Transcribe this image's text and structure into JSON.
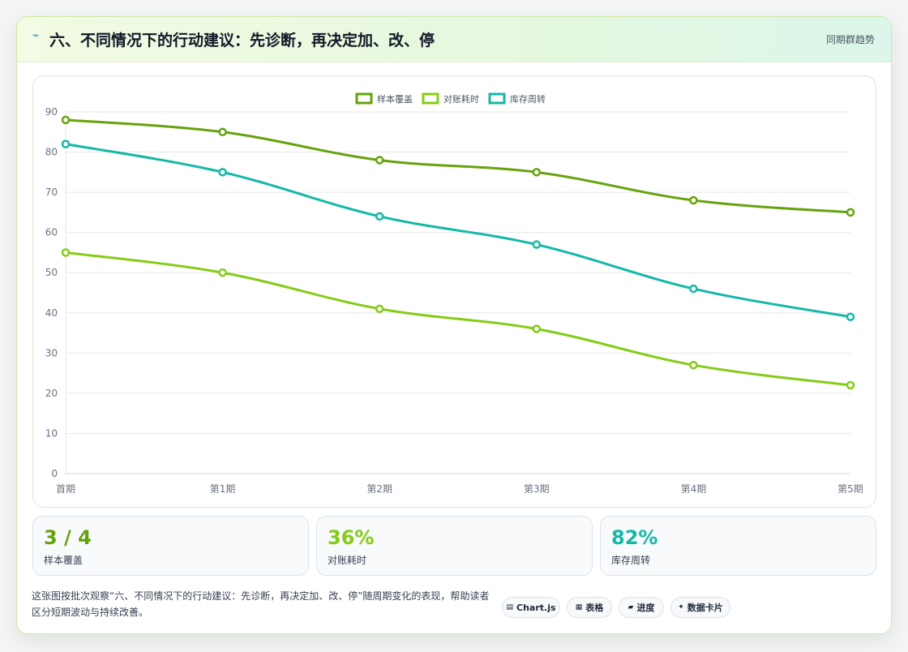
{
  "header": {
    "icon": "chart-line-icon",
    "title": "六、不同情况下的行动建议：先诊断，再决定加、改、停",
    "right_label": "同期群趋势"
  },
  "chart_data": {
    "type": "line",
    "categories": [
      "首期",
      "第1期",
      "第2期",
      "第3期",
      "第4期",
      "第5期"
    ],
    "ylim": [
      0,
      90
    ],
    "yticks": [
      0,
      10,
      20,
      30,
      40,
      50,
      60,
      70,
      80,
      90
    ],
    "legend_position": "top-center",
    "grid": true,
    "series": [
      {
        "name": "样本覆盖",
        "color": "#65a30d",
        "values": [
          88,
          85,
          78,
          75,
          68,
          65
        ]
      },
      {
        "name": "对账耗时",
        "color": "#84cc16",
        "values": [
          55,
          50,
          41,
          36,
          27,
          22
        ]
      },
      {
        "name": "库存周转",
        "color": "#14b8a6",
        "values": [
          82,
          75,
          64,
          57,
          46,
          39
        ]
      }
    ]
  },
  "stats": [
    {
      "value": "3 / 4",
      "label": "样本覆盖",
      "color": "#65a30d"
    },
    {
      "value": "36%",
      "label": "对账耗时",
      "color": "#84cc16"
    },
    {
      "value": "82%",
      "label": "库存周转",
      "color": "#14b8a6"
    }
  ],
  "footer": {
    "description": "这张图按批次观察“六、不同情况下的行动建议：先诊断，再决定加、改、停”随周期变化的表现，帮助读者区分短期波动与持续改善。",
    "chips": [
      {
        "icon": "code-icon",
        "label": "Chart.js"
      },
      {
        "icon": "table-icon",
        "label": "表格"
      },
      {
        "icon": "progress-icon",
        "label": "进度"
      },
      {
        "icon": "sparkle-icon",
        "label": "数据卡片"
      }
    ]
  }
}
